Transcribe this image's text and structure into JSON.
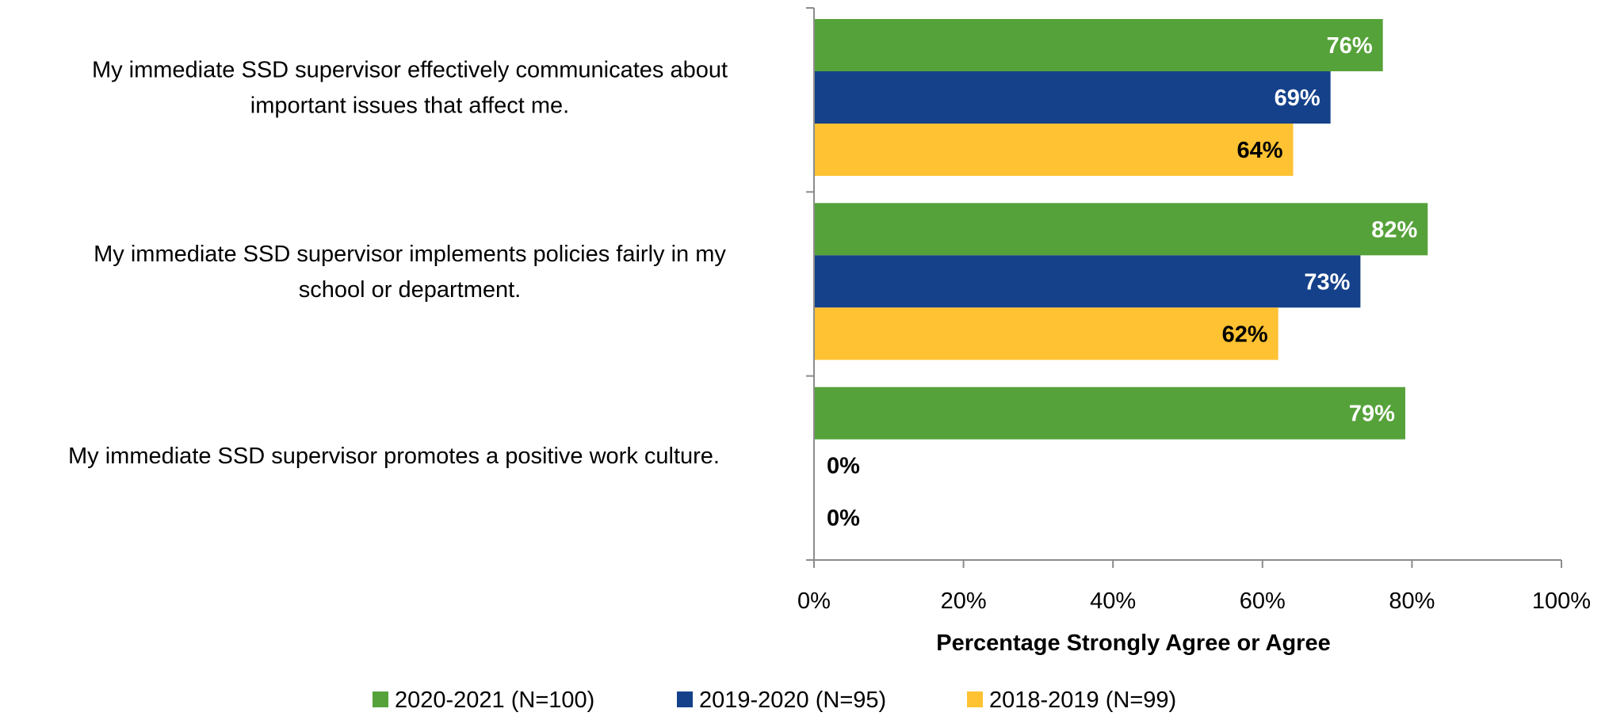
{
  "chart_data": {
    "type": "bar",
    "orientation": "horizontal",
    "categories": [
      [
        "My immediate SSD supervisor effectively communicates about",
        "important issues that affect me."
      ],
      [
        "My immediate SSD supervisor implements policies fairly in my",
        "school or department."
      ],
      [
        "My immediate SSD supervisor promotes a positive work culture."
      ]
    ],
    "series": [
      {
        "name": "2020-2021 (N=100)",
        "values": [
          76,
          82,
          79
        ],
        "color": "#56A23A",
        "label_color": "#ffffff"
      },
      {
        "name": "2019-2020 (N=95)",
        "values": [
          69,
          73,
          0
        ],
        "color": "#15418A",
        "label_color": "#ffffff"
      },
      {
        "name": "2018-2019 (N=99)",
        "values": [
          64,
          62,
          0
        ],
        "color": "#FEC232",
        "label_color": "#000000"
      }
    ],
    "data_labels": [
      [
        "76%",
        "82%",
        "79%"
      ],
      [
        "69%",
        "73%",
        "0%"
      ],
      [
        "64%",
        "62%",
        "0%"
      ]
    ],
    "xlabel": "Percentage Strongly Agree or Agree",
    "xlim": [
      0,
      100
    ],
    "xticks": [
      0,
      20,
      40,
      60,
      80,
      100
    ],
    "xtick_labels": [
      "0%",
      "20%",
      "40%",
      "60%",
      "80%",
      "100%"
    ],
    "grid": false,
    "legend_position": "bottom"
  }
}
